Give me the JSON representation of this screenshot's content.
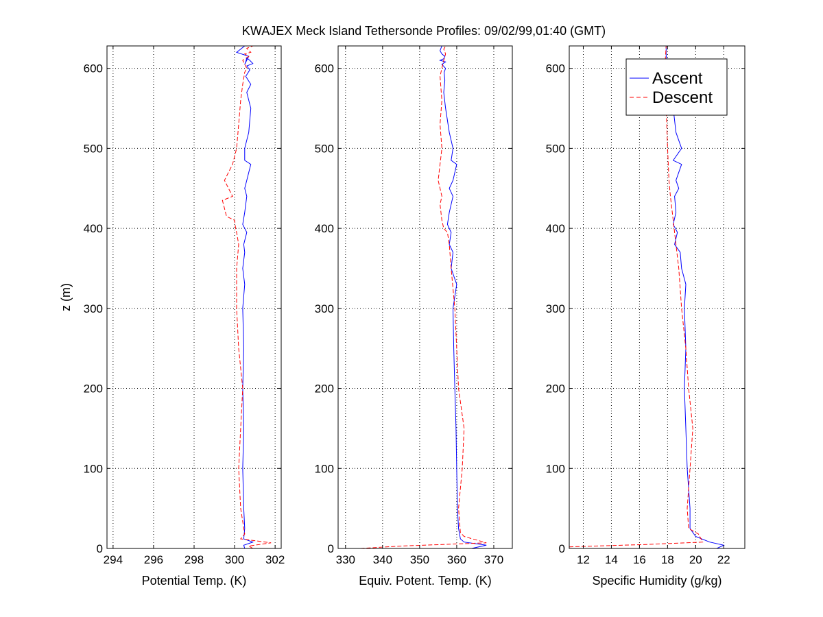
{
  "figure": {
    "title": "KWAJEX Meck Island Tethersonde Profiles: 09/02/99,01:40 (GMT)"
  },
  "colors": {
    "ascent": "#0000ff",
    "descent": "#ff0000",
    "axis": "#000000",
    "grid": "#000000",
    "background": "#ffffff"
  },
  "legend": {
    "placement": "top-right of third panel",
    "entries": [
      {
        "label": "Ascent",
        "style": "solid"
      },
      {
        "label": "Descent",
        "style": "dashed"
      }
    ]
  },
  "chart_data": [
    {
      "type": "line",
      "xlabel": "Potential Temp. (K)",
      "ylabel": "z (m)",
      "xlim": [
        293.7,
        302.3
      ],
      "ylim": [
        0,
        628
      ],
      "xticks": [
        294,
        296,
        298,
        300,
        302
      ],
      "yticks": [
        0,
        100,
        200,
        300,
        400,
        500,
        600
      ],
      "grid": true,
      "series": [
        {
          "name": "Ascent",
          "x": [
            300.5,
            300.45,
            300.9,
            300.45,
            300.5,
            300.45,
            300.4,
            300.45,
            300.4,
            300.45,
            300.4,
            300.5,
            300.4,
            300.5,
            300.45,
            300.6,
            300.4,
            300.5,
            300.6,
            300.5,
            300.6,
            300.8,
            300.5,
            300.5,
            300.7,
            300.8,
            300.6,
            300.8,
            300.55,
            300.75,
            300.6,
            300.9,
            300.75,
            300.6,
            300.55,
            300.5,
            300.7,
            300.1,
            300.5
          ],
          "y": [
            0,
            4,
            8,
            12,
            25,
            50,
            100,
            150,
            200,
            250,
            300,
            330,
            350,
            370,
            380,
            395,
            405,
            420,
            440,
            450,
            460,
            480,
            485,
            500,
            520,
            550,
            570,
            580,
            590,
            598,
            603,
            606,
            610,
            613,
            608,
            605,
            615,
            620,
            628
          ]
        },
        {
          "name": "Descent",
          "x": [
            300.9,
            300.7,
            301.8,
            300.3,
            300.5,
            300.3,
            300.2,
            300.3,
            300.4,
            300.2,
            300.1,
            300.1,
            300.2,
            300.1,
            300.05,
            300.0,
            299.6,
            299.4,
            299.9,
            299.5,
            299.7,
            299.9,
            300.1,
            300.2,
            300.3,
            300.4,
            300.5,
            300.6,
            300.5,
            300.4,
            300.7,
            300.5,
            300.8,
            300.6,
            300.9
          ],
          "y": [
            0,
            3,
            7,
            12,
            18,
            50,
            100,
            150,
            200,
            250,
            300,
            350,
            380,
            395,
            400,
            410,
            415,
            435,
            440,
            460,
            470,
            480,
            500,
            530,
            560,
            580,
            595,
            600,
            605,
            610,
            615,
            618,
            620,
            625,
            628
          ]
        }
      ]
    },
    {
      "type": "line",
      "xlabel": "Equiv. Potent. Temp. (K)",
      "xlim": [
        328,
        375
      ],
      "ylim": [
        0,
        628
      ],
      "xticks": [
        330,
        340,
        350,
        360,
        370
      ],
      "yticks": [
        0,
        100,
        200,
        300,
        400,
        500,
        600
      ],
      "grid": true,
      "series": [
        {
          "name": "Ascent",
          "x": [
            364,
            368,
            362,
            361,
            360.5,
            360.2,
            360,
            359.8,
            359.5,
            359.2,
            359,
            360,
            358.5,
            359,
            358,
            358.5,
            357.5,
            358,
            359,
            358,
            359,
            360,
            358.5,
            359,
            358,
            357,
            356.5,
            356.8,
            356.6,
            357,
            356,
            357,
            355.5,
            356.5,
            356.8,
            356,
            355.5,
            356
          ],
          "y": [
            0,
            4,
            8,
            12,
            25,
            50,
            100,
            150,
            200,
            250,
            300,
            330,
            350,
            370,
            380,
            395,
            405,
            420,
            440,
            450,
            460,
            480,
            485,
            500,
            520,
            550,
            570,
            585,
            595,
            600,
            605,
            608,
            610,
            612,
            615,
            618,
            622,
            628
          ]
        },
        {
          "name": "Descent",
          "x": [
            334,
            345,
            368,
            362,
            361,
            360.5,
            361.5,
            362,
            360.5,
            360,
            359.5,
            358.5,
            358,
            357.5,
            356.5,
            356,
            355.5,
            356,
            355,
            355.5,
            356,
            355.5,
            356,
            355.5,
            356,
            356.5,
            357,
            356.5,
            357
          ],
          "y": [
            0,
            3,
            7,
            15,
            20,
            50,
            100,
            150,
            200,
            250,
            300,
            350,
            380,
            395,
            400,
            410,
            430,
            440,
            460,
            480,
            500,
            530,
            560,
            590,
            600,
            610,
            618,
            624,
            628
          ]
        }
      ]
    },
    {
      "type": "line",
      "xlabel": "Specific Humidity (g/kg)",
      "xlim": [
        11,
        23.5
      ],
      "ylim": [
        0,
        628
      ],
      "xticks": [
        12,
        14,
        16,
        18,
        20,
        22
      ],
      "yticks": [
        0,
        100,
        200,
        300,
        400,
        500,
        600
      ],
      "grid": true,
      "series": [
        {
          "name": "Ascent",
          "x": [
            21.5,
            22,
            21,
            20,
            19.6,
            19.6,
            19.4,
            19.3,
            19.2,
            19.3,
            19.2,
            19.3,
            19.0,
            18.9,
            18.5,
            18.7,
            18.4,
            18.6,
            18.5,
            18.8,
            18.6,
            19.0,
            18.4,
            19.0,
            18.6,
            18.4,
            18.2,
            18.0,
            18.1,
            17.9,
            17.9
          ],
          "y": [
            0,
            4,
            8,
            15,
            25,
            50,
            100,
            150,
            200,
            250,
            300,
            330,
            350,
            370,
            380,
            395,
            405,
            420,
            440,
            450,
            460,
            480,
            485,
            500,
            520,
            550,
            570,
            590,
            605,
            615,
            628
          ]
        },
        {
          "name": "Descent",
          "x": [
            11.0,
            16.5,
            20.5,
            20.2,
            19.5,
            19.4,
            19.6,
            19.8,
            19.5,
            19.3,
            19.0,
            18.8,
            18.6,
            18.5,
            18.4,
            18.2,
            18.1,
            18.0,
            17.9,
            17.8,
            17.9
          ],
          "y": [
            2,
            5,
            8,
            18,
            25,
            50,
            100,
            150,
            200,
            250,
            300,
            350,
            380,
            395,
            410,
            440,
            460,
            500,
            550,
            600,
            628
          ]
        }
      ]
    }
  ]
}
